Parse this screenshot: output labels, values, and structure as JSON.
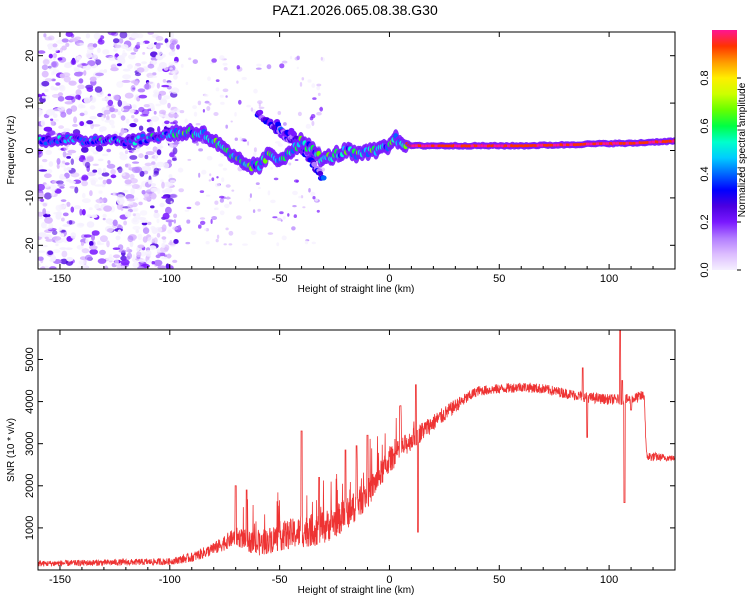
{
  "chart_data": [
    {
      "type": "heatmap",
      "title": "PAZ1.2026.065.08.38.G30",
      "xlabel": "Height of straight line (km)",
      "ylabel": "Frequency (Hz)",
      "xlim": [
        -160,
        130
      ],
      "ylim": [
        -25,
        25
      ],
      "x_ticks": [
        -150,
        -100,
        -50,
        0,
        50,
        100
      ],
      "y_ticks": [
        -20,
        -10,
        0,
        10,
        20
      ],
      "colorbar": {
        "label": "Normalized spectral amplitude",
        "range": [
          0,
          1
        ],
        "ticks": [
          0.0,
          0.2,
          0.4,
          0.6,
          0.8
        ],
        "colormap": [
          "#f5f0ff",
          "#dcbcff",
          "#b27cff",
          "#7a18ff",
          "#4a00e0",
          "#0000ff",
          "#0066ff",
          "#00ccff",
          "#00ffcc",
          "#00ff44",
          "#66ff00",
          "#ccff00",
          "#ffee00",
          "#ff9900",
          "#ff3300",
          "#ff1493"
        ]
      },
      "ridge": [
        [
          -160,
          2
        ],
        [
          -150,
          2.5
        ],
        [
          -140,
          2
        ],
        [
          -130,
          2.5
        ],
        [
          -120,
          2
        ],
        [
          -110,
          2.5
        ],
        [
          -100,
          3.5
        ],
        [
          -90,
          4
        ],
        [
          -85,
          3.5
        ],
        [
          -80,
          2
        ],
        [
          -75,
          0
        ],
        [
          -70,
          -2
        ],
        [
          -65,
          -3
        ],
        [
          -60,
          -3.5
        ],
        [
          -55,
          -1
        ],
        [
          -50,
          -2
        ],
        [
          -45,
          0
        ],
        [
          -40,
          2
        ],
        [
          -35,
          0
        ],
        [
          -30,
          -2
        ],
        [
          -25,
          -1
        ],
        [
          -20,
          0
        ],
        [
          -15,
          -1
        ],
        [
          -10,
          -0.5
        ],
        [
          -5,
          0
        ],
        [
          0,
          1
        ],
        [
          2,
          2.5
        ],
        [
          5,
          2
        ],
        [
          10,
          1
        ],
        [
          20,
          1
        ],
        [
          40,
          1
        ],
        [
          60,
          1
        ],
        [
          80,
          1.2
        ],
        [
          100,
          1.5
        ],
        [
          110,
          1.5
        ],
        [
          120,
          1.8
        ],
        [
          130,
          2
        ]
      ],
      "bands": [
        {
          "x": [
            -60,
            -45
          ],
          "f": [
            8,
            2
          ]
        },
        {
          "x": [
            -52,
            -35
          ],
          "f": [
            6,
            -2
          ]
        },
        {
          "x": [
            -45,
            -30
          ],
          "f": [
            4,
            -6
          ]
        }
      ]
    },
    {
      "type": "line",
      "xlabel": "Height of straight line (km)",
      "ylabel": "SNR (10 * v/v)",
      "xlim": [
        -160,
        130
      ],
      "ylim": [
        0,
        5700
      ],
      "x_ticks": [
        -150,
        -100,
        -50,
        0,
        50,
        100
      ],
      "y_ticks": [
        1000,
        2000,
        3000,
        4000,
        5000
      ],
      "color": "#ee3333",
      "envelope": {
        "x": [
          -160,
          -100,
          -90,
          -80,
          -70,
          -60,
          -50,
          -40,
          -30,
          -20,
          -10,
          0,
          10,
          20,
          30,
          40,
          50,
          60,
          70,
          80,
          90,
          100,
          110,
          116,
          117,
          130
        ],
        "snr": [
          150,
          200,
          300,
          500,
          800,
          600,
          800,
          900,
          1000,
          1300,
          1800,
          2600,
          3100,
          3500,
          3900,
          4250,
          4300,
          4350,
          4300,
          4200,
          4100,
          4050,
          4050,
          4150,
          2700,
          2650
        ]
      },
      "spikes": [
        [
          -70,
          2000
        ],
        [
          -65,
          1900
        ],
        [
          -40,
          3300
        ],
        [
          -32,
          2200
        ],
        [
          -20,
          2850
        ],
        [
          -15,
          2950
        ],
        [
          -10,
          3200
        ],
        [
          5,
          3900
        ],
        [
          12,
          4400
        ],
        [
          13,
          900
        ],
        [
          88,
          4800
        ],
        [
          90,
          3150
        ],
        [
          105,
          5700
        ],
        [
          106,
          4500
        ],
        [
          107,
          1600
        ],
        [
          110,
          3800
        ]
      ],
      "noise_amplitude": {
        "x": [
          -160,
          -100,
          -80,
          -50,
          -30,
          -10,
          10,
          40,
          80,
          116,
          130
        ],
        "amp": [
          70,
          80,
          150,
          350,
          400,
          350,
          250,
          120,
          120,
          130,
          60
        ]
      }
    }
  ]
}
